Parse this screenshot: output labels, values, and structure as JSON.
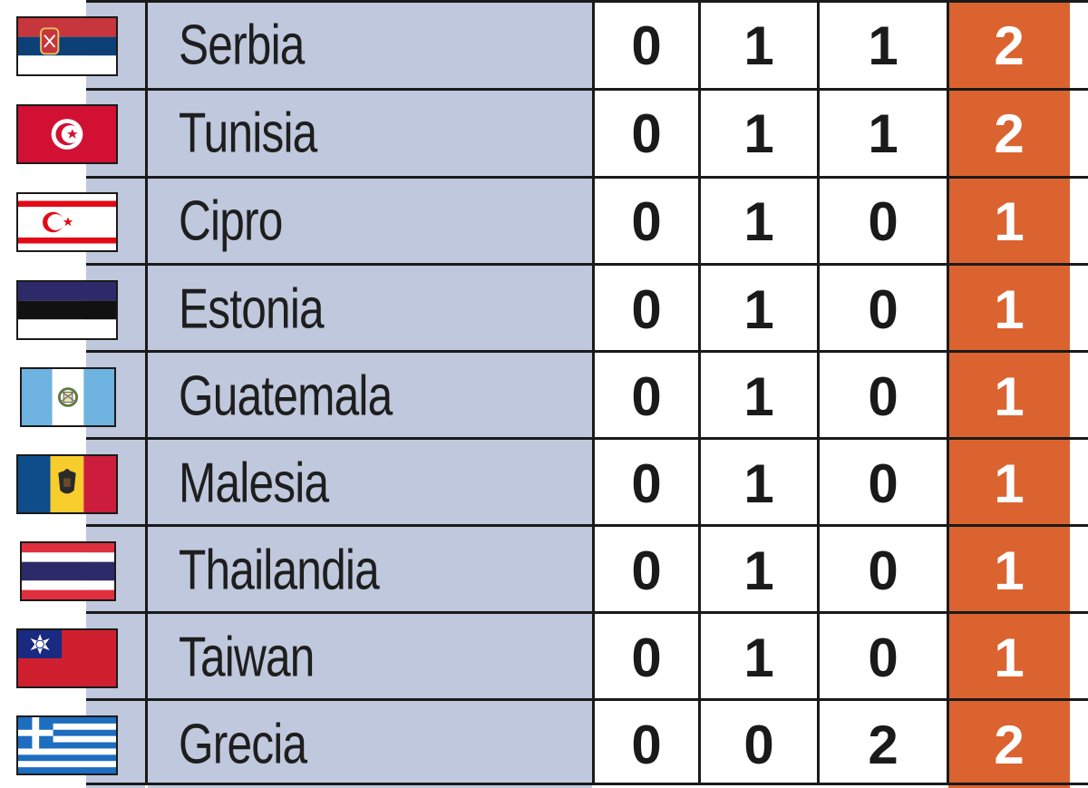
{
  "rows": [
    {
      "country": "Serbia",
      "gold": "0",
      "silver": "1",
      "bronze": "1",
      "total": "2",
      "flag_icon": "serbia-flag-icon"
    },
    {
      "country": "Tunisia",
      "gold": "0",
      "silver": "1",
      "bronze": "1",
      "total": "2",
      "flag_icon": "tunisia-flag-icon"
    },
    {
      "country": "Cipro",
      "gold": "0",
      "silver": "1",
      "bronze": "0",
      "total": "1",
      "flag_icon": "northern-cyprus-flag-icon"
    },
    {
      "country": "Estonia",
      "gold": "0",
      "silver": "1",
      "bronze": "0",
      "total": "1",
      "flag_icon": "estonia-flag-icon"
    },
    {
      "country": "Guatemala",
      "gold": "0",
      "silver": "1",
      "bronze": "0",
      "total": "1",
      "flag_icon": "guatemala-flag-icon"
    },
    {
      "country": "Malesia",
      "gold": "0",
      "silver": "1",
      "bronze": "0",
      "total": "1",
      "flag_icon": "moldova-flag-icon"
    },
    {
      "country": "Thailandia",
      "gold": "0",
      "silver": "1",
      "bronze": "0",
      "total": "1",
      "flag_icon": "thailand-flag-icon"
    },
    {
      "country": "Taiwan",
      "gold": "0",
      "silver": "1",
      "bronze": "0",
      "total": "1",
      "flag_icon": "taiwan-flag-icon"
    },
    {
      "country": "Grecia",
      "gold": "0",
      "silver": "0",
      "bronze": "2",
      "total": "2",
      "flag_icon": "greece-flag-icon"
    }
  ],
  "colors": {
    "name_bg": "#bfc8dc",
    "total_bg": "#db6330",
    "grid": "#1a1a1a"
  }
}
